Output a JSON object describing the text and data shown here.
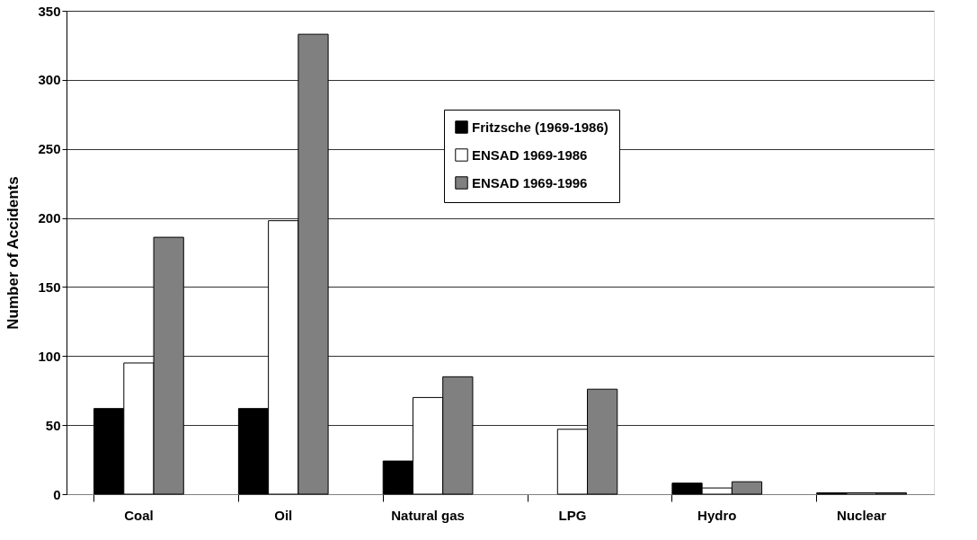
{
  "chart_data": {
    "type": "bar",
    "ylabel": "Number of Accidents",
    "categories": [
      "Coal",
      "Oil",
      "Natural gas",
      "LPG",
      "Hydro",
      "Nuclear"
    ],
    "series": [
      {
        "name": "Fritzsche (1969-1986)",
        "color": "#000000",
        "values": [
          62,
          62,
          24,
          null,
          8,
          1
        ]
      },
      {
        "name": "ENSAD 1969-1986",
        "color": "#ffffff",
        "values": [
          95,
          198,
          70,
          47,
          4.5,
          1
        ]
      },
      {
        "name": "ENSAD 1969-1996",
        "color": "#808080",
        "values": [
          186,
          333,
          85,
          76,
          9,
          1
        ]
      }
    ],
    "ylim": [
      0,
      350
    ],
    "yticks": [
      0,
      50,
      100,
      150,
      200,
      250,
      300,
      350
    ],
    "grid": "y",
    "legend": "top"
  }
}
